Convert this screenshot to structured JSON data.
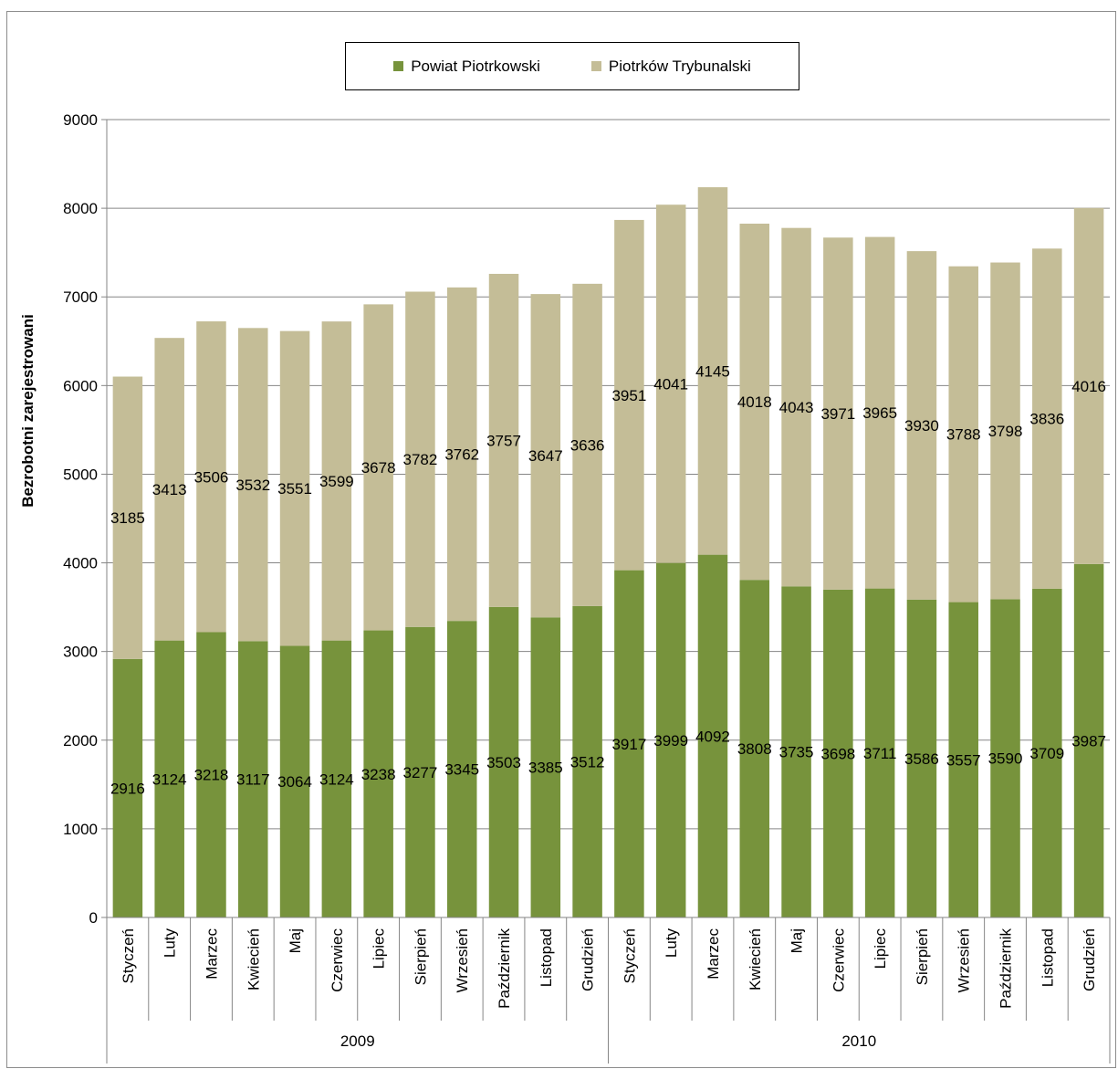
{
  "chart_data": {
    "type": "bar",
    "stacked": true,
    "ylabel": "Bezrobotni zarejestrowani",
    "xlabel": "",
    "ylim": [
      0,
      9000
    ],
    "yticks": [
      0,
      1000,
      2000,
      3000,
      4000,
      5000,
      6000,
      7000,
      8000,
      9000
    ],
    "grid": true,
    "legend_position": "top-center",
    "categories": [
      "Styczeń",
      "Luty",
      "Marzec",
      "Kwiecień",
      "Maj",
      "Czerwiec",
      "Lipiec",
      "Sierpień",
      "Wrzesień",
      "Październik",
      "Listopad",
      "Grudzień",
      "Styczeń",
      "Luty",
      "Marzec",
      "Kwiecień",
      "Maj",
      "Czerwiec",
      "Lipiec",
      "Sierpień",
      "Wrzesień",
      "Październik",
      "Listopad",
      "Grudzień"
    ],
    "groups": [
      {
        "label": "2009",
        "count": 12
      },
      {
        "label": "2010",
        "count": 12
      }
    ],
    "series": [
      {
        "name": "Powiat Piotrkowski",
        "color": "#77933c",
        "values": [
          2916,
          3124,
          3218,
          3117,
          3064,
          3124,
          3238,
          3277,
          3345,
          3503,
          3385,
          3512,
          3917,
          3999,
          4092,
          3808,
          3735,
          3698,
          3711,
          3586,
          3557,
          3590,
          3709,
          3987
        ]
      },
      {
        "name": "Piotrków Trybunalski",
        "color": "#c4bd97",
        "values": [
          3185,
          3413,
          3506,
          3532,
          3551,
          3599,
          3678,
          3782,
          3762,
          3757,
          3647,
          3636,
          3951,
          4041,
          4145,
          4018,
          4043,
          3971,
          3965,
          3930,
          3788,
          3798,
          3836,
          4016
        ]
      }
    ]
  }
}
